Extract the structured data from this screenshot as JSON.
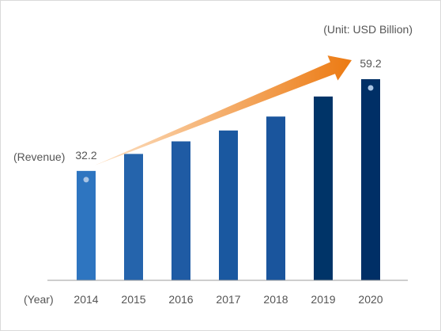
{
  "chart_data": {
    "type": "bar",
    "unit_label": "(Unit: USD Billion)",
    "ylabel": "(Revenue)",
    "xlabel": "(Year)",
    "categories": [
      "2014",
      "2015",
      "2016",
      "2017",
      "2018",
      "2019",
      "2020"
    ],
    "values": [
      32.2,
      37.2,
      40.9,
      44.1,
      48.2,
      54.1,
      59.2
    ],
    "data_labels": [
      {
        "index": 0,
        "text": "32.2"
      },
      {
        "index": 6,
        "text": "59.2"
      }
    ],
    "ylim": [
      0,
      65
    ],
    "grid": false,
    "legend": "none",
    "colors": {
      "bars": [
        "#2e75c0",
        "#2564ac",
        "#1f5ba4",
        "#1a58a0",
        "#1a559d",
        "#003468",
        "#002f66"
      ],
      "marker_dot": "#a9c4e4",
      "arrow_start": "#fde2c6",
      "arrow_end": "#ec7a12",
      "baseline": "#9e9e9e",
      "text": "#555555"
    },
    "trend_arrow": {
      "from_index": 0,
      "to_index": 6,
      "direction": "up"
    }
  }
}
